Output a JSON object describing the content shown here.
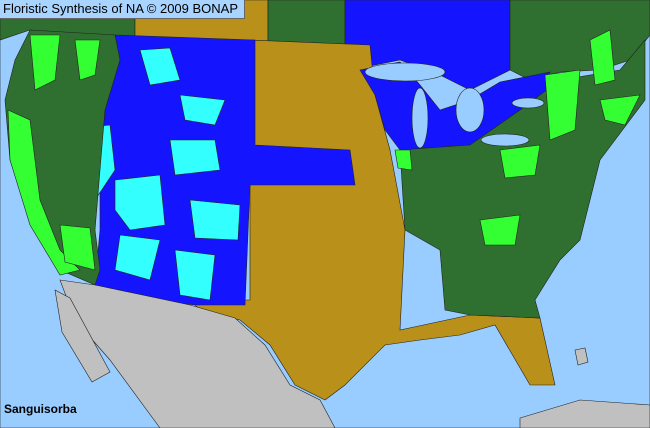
{
  "header": {
    "title": "Floristic Synthesis of NA © 2009 BONAP"
  },
  "map": {
    "taxon": "Sanguisorba",
    "colors": {
      "ocean": "#99ccff",
      "native_present": "#2f6f2f",
      "native_common": "#33ff33",
      "absent": "#b8901a",
      "exotic_present": "#1414ff",
      "exotic_common": "#33ffff",
      "outside": "#c0c0c0"
    }
  }
}
